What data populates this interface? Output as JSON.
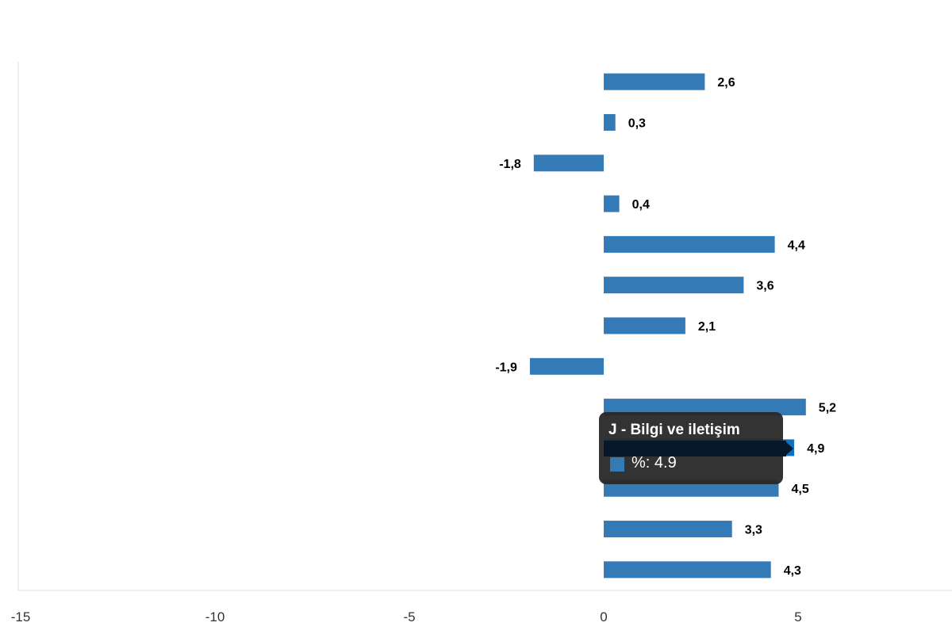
{
  "chart_data": {
    "type": "bar",
    "orientation": "horizontal",
    "values": [
      2.6,
      0.3,
      -1.8,
      0.4,
      4.4,
      3.6,
      2.1,
      -1.9,
      5.2,
      4.9,
      4.5,
      3.3,
      4.3
    ],
    "data_labels": [
      "2,6",
      "0,3",
      "-1,8",
      "0,4",
      "4,4",
      "3,6",
      "2,1",
      "-1,9",
      "5,2",
      "4,9",
      "4,5",
      "3,3",
      "4,3"
    ],
    "xlim": [
      -15,
      9
    ],
    "x_ticks": [
      -15,
      -10,
      -5,
      0,
      5
    ],
    "x_tick_labels": [
      "-15",
      "-10",
      "-5",
      "0",
      "5"
    ],
    "grid": false,
    "bar_color": "#337ab7",
    "highlight_color": "#1270c0",
    "highlighted_index": 9
  },
  "tooltip": {
    "title": "J - Bilgi ve iletişim",
    "value_text": "%: 4.9"
  }
}
